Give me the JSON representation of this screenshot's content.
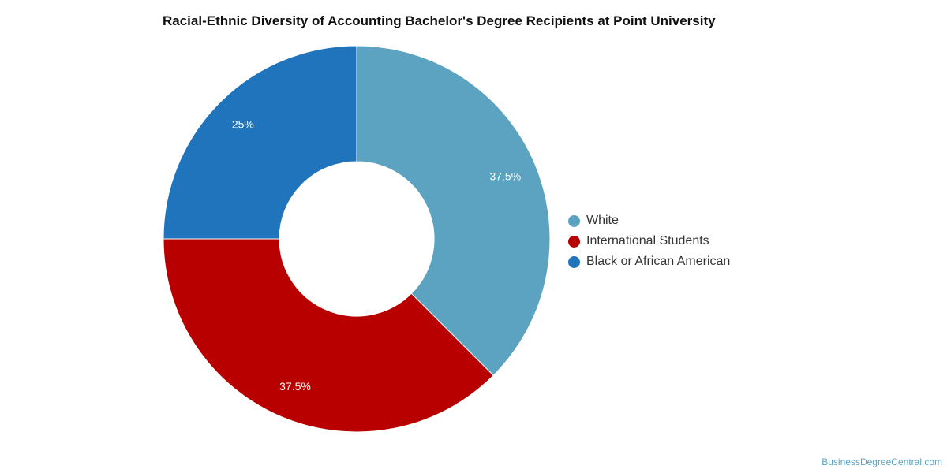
{
  "chart_data": {
    "type": "pie",
    "title": "Racial-Ethnic Diversity of Accounting Bachelor's Degree Recipients at Point University",
    "donut": true,
    "legend_position": "right",
    "slices": [
      {
        "label": "White",
        "value": 37.5,
        "display": "37.5%",
        "color": "#5ba3c1"
      },
      {
        "label": "International Students",
        "value": 37.5,
        "display": "37.5%",
        "color": "#b90000"
      },
      {
        "label": "Black or African American",
        "value": 25,
        "display": "25%",
        "color": "#1f74bb"
      }
    ]
  },
  "footer": {
    "watermark": "BusinessDegreeCentral.com"
  }
}
